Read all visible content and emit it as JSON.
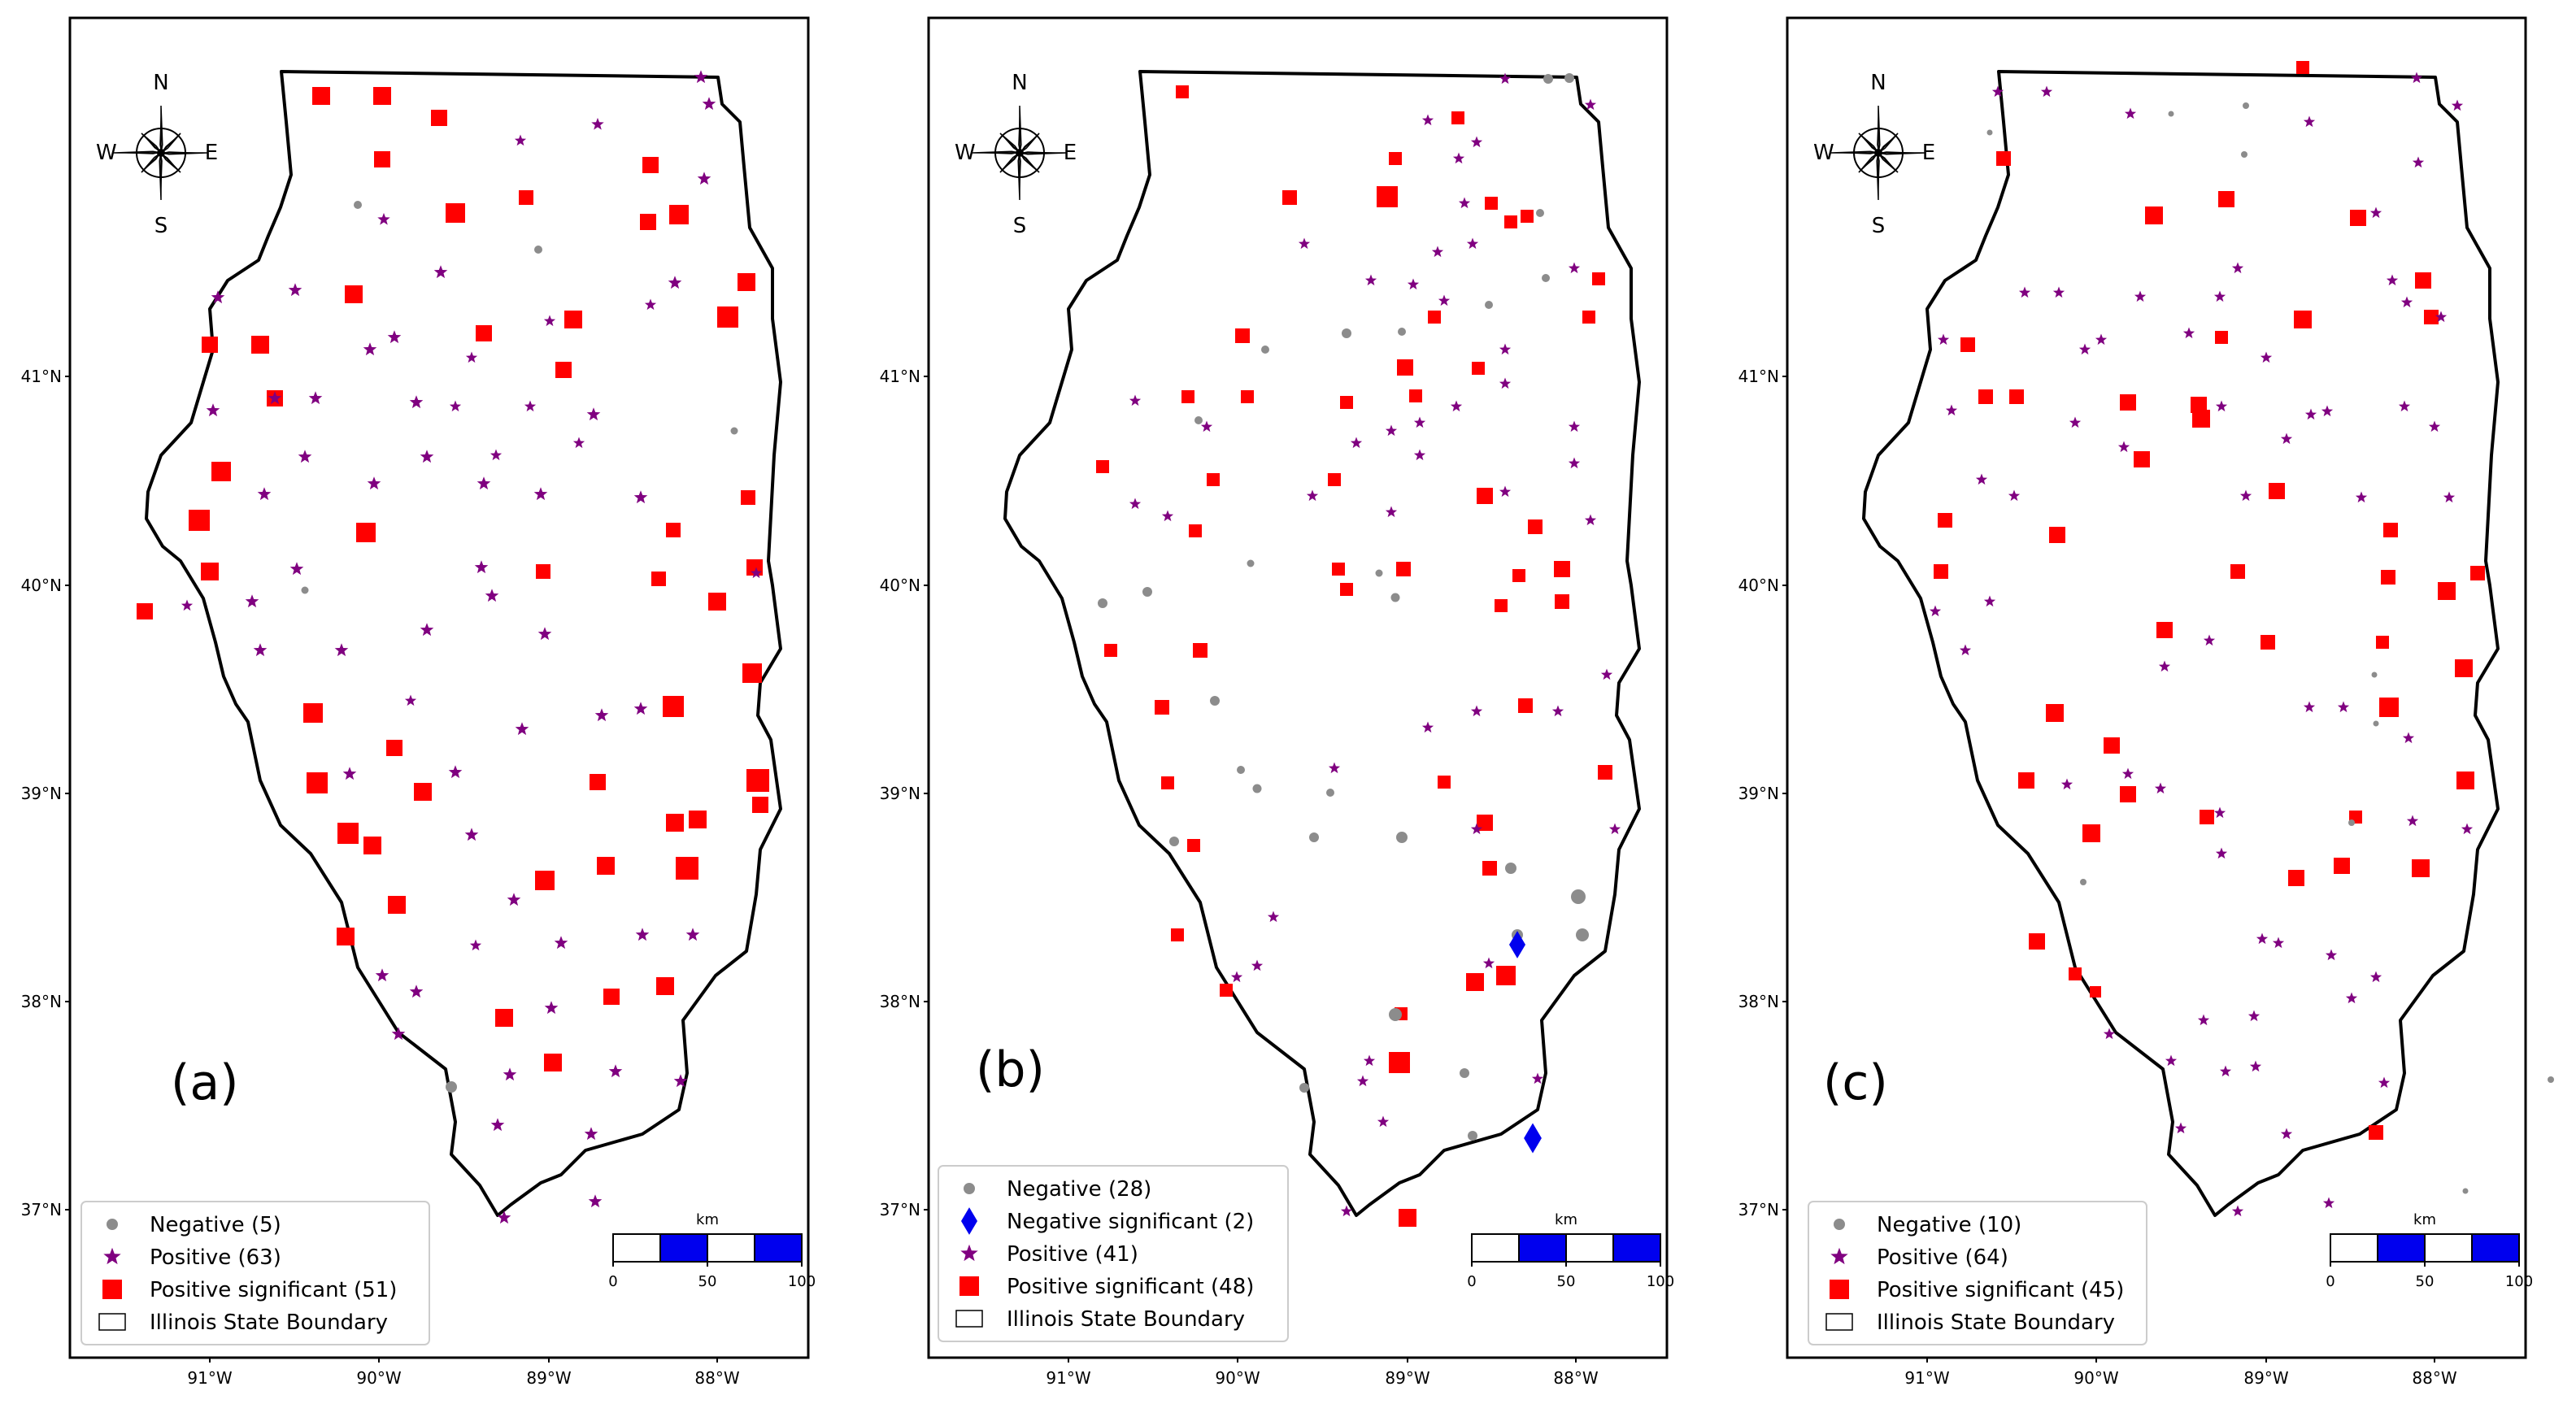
{
  "lat_ticks": [
    "41°N",
    "40°N",
    "39°N",
    "38°N",
    "37°N"
  ],
  "lon_ticks": [
    "91°W",
    "90°W",
    "89°W",
    "88°W"
  ],
  "compass": {
    "n": "N",
    "s": "S",
    "e": "E",
    "w": "W"
  },
  "scalebar": {
    "unit": "km",
    "labels": [
      "0",
      "50",
      "100"
    ]
  },
  "colors": {
    "negative": "#8c8c8c",
    "negative_significant": "#0000ee",
    "positive": "#800080",
    "positive_significant": "#ff0000"
  },
  "panels": [
    {
      "label": "(a)",
      "legend": [
        {
          "marker": "circle",
          "text": "Negative (5)"
        },
        {
          "marker": "star",
          "text": "Positive (63)"
        },
        {
          "marker": "square",
          "text": "Positive significant (51)"
        },
        {
          "marker": "boundary",
          "text": "Illinois State Boundary"
        }
      ]
    },
    {
      "label": "(b)",
      "legend": [
        {
          "marker": "circle",
          "text": "Negative (28)"
        },
        {
          "marker": "diamond",
          "text": "Negative significant (2)"
        },
        {
          "marker": "star",
          "text": "Positive (41)"
        },
        {
          "marker": "square",
          "text": "Positive significant (48)"
        },
        {
          "marker": "boundary",
          "text": "Illinois State Boundary"
        }
      ]
    },
    {
      "label": "(c)",
      "legend": [
        {
          "marker": "circle",
          "text": "Negative (10)"
        },
        {
          "marker": "star",
          "text": "Positive (64)"
        },
        {
          "marker": "square",
          "text": "Positive significant (45)"
        },
        {
          "marker": "boundary",
          "text": "Illinois State Boundary"
        }
      ]
    }
  ]
}
